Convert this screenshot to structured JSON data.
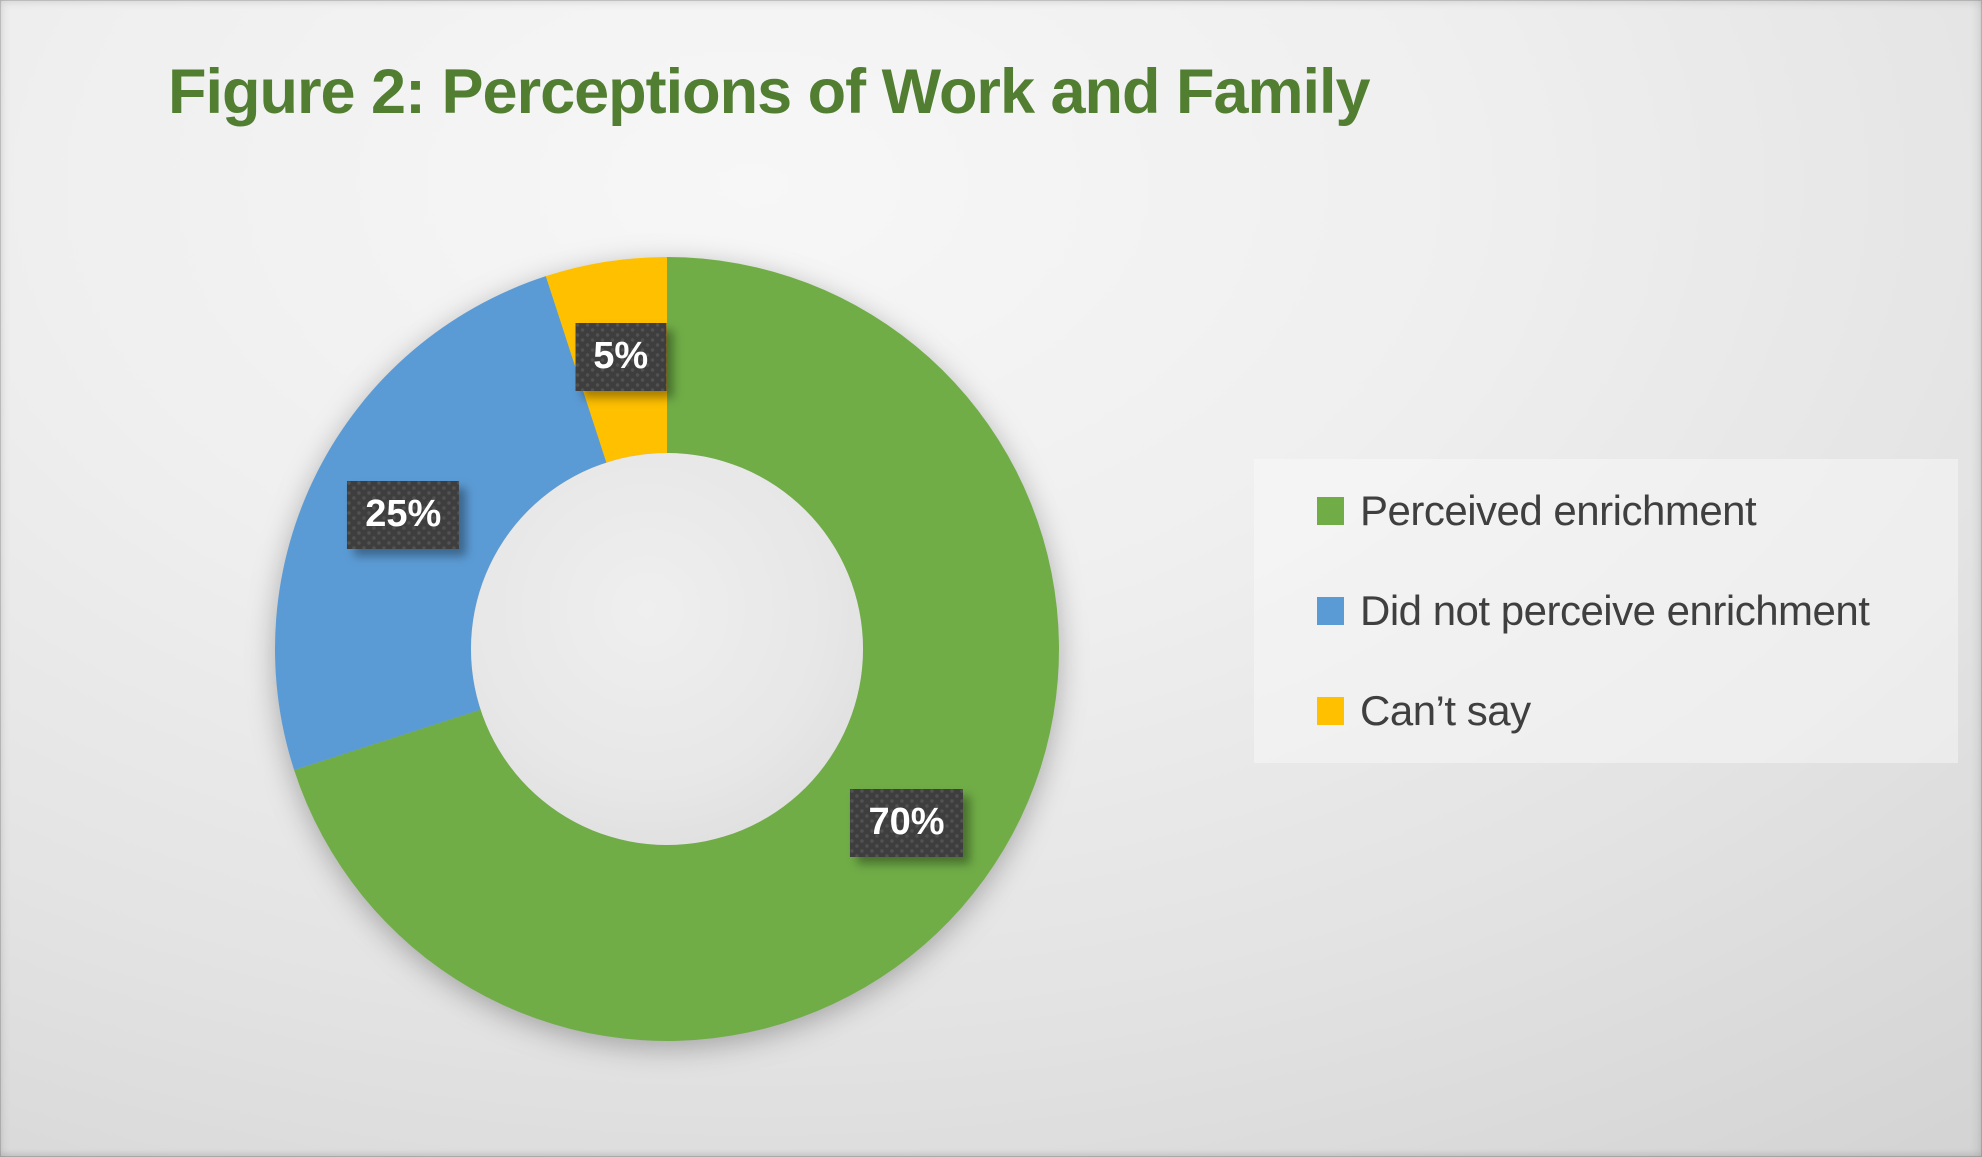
{
  "page": {
    "title": "Figure 2: Perceptions of Work and Family"
  },
  "chart_data": {
    "type": "pie",
    "subtype": "donut",
    "title": "Figure 2: Perceptions of Work and Family",
    "slices": [
      {
        "label": "Perceived enrichment",
        "value": 70,
        "display": "70%",
        "color": "#70AD47"
      },
      {
        "label": "Did not perceive enrichment",
        "value": 25,
        "display": "25%",
        "color": "#5B9BD5"
      },
      {
        "label": "Can’t say",
        "value": 5,
        "display": "5%",
        "color": "#FFC000"
      }
    ],
    "start_angle_deg": 0,
    "direction": "clockwise",
    "hole_ratio": 0.5,
    "legend_position": "right",
    "data_labels": "percent-outside-center-of-ring",
    "data_label_box_color": "#3E3E3E",
    "data_label_text_color": "#FFFFFF",
    "title_color": "#527E32",
    "legend_text_color": "#3F3F3F",
    "hole_color": "#E7E7E7"
  }
}
